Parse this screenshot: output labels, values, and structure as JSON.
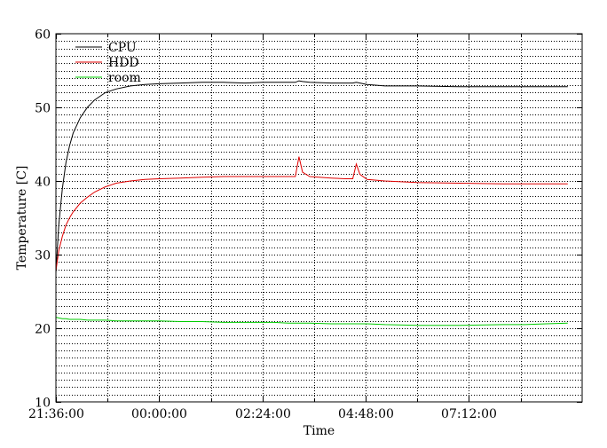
{
  "chart_data": {
    "type": "line",
    "title": "",
    "xlabel": "Time",
    "ylabel": "Temperature [C]",
    "ylim": [
      10,
      60
    ],
    "yticks": [
      10,
      20,
      30,
      40,
      50,
      60
    ],
    "xlim": [
      "21:36:00",
      "09:50:00"
    ],
    "xticks": [
      "21:36:00",
      "00:00:00",
      "02:24:00",
      "04:48:00",
      "07:12:00"
    ],
    "x_minor_ticks": [
      "22:48:00",
      "01:12:00",
      "03:36:00",
      "06:00:00",
      "08:24:00"
    ],
    "grid": {
      "horizontal": true,
      "vertical": true,
      "horizontal_every": 1
    },
    "legend": {
      "position": "top-left"
    },
    "x": [
      "21:36:00",
      "21:40:00",
      "21:45:00",
      "21:50:00",
      "21:55:00",
      "22:00:00",
      "22:10:00",
      "22:20:00",
      "22:30:00",
      "22:45:00",
      "23:00:00",
      "23:20:00",
      "23:40:00",
      "00:00:00",
      "00:30:00",
      "01:00:00",
      "01:30:00",
      "02:00:00",
      "02:24:00",
      "02:40:00",
      "03:00:00",
      "03:10:00",
      "03:15:00",
      "03:20:00",
      "03:30:00",
      "04:00:00",
      "04:20:00",
      "04:30:00",
      "04:35:00",
      "04:40:00",
      "04:50:00",
      "05:15:00",
      "06:00:00",
      "07:00:00",
      "08:00:00",
      "08:30:00",
      "09:00:00",
      "09:30:00"
    ],
    "series": [
      {
        "name": "CPU",
        "color": "#000000",
        "values": [
          27.5,
          34,
          39,
          42.5,
          44.8,
          46.5,
          48.6,
          50,
          51,
          52,
          52.5,
          52.9,
          53.1,
          53.2,
          53.3,
          53.4,
          53.4,
          53.3,
          53.4,
          53.4,
          53.4,
          53.4,
          53.6,
          53.5,
          53.4,
          53.3,
          53.3,
          53.3,
          53.4,
          53.3,
          53.1,
          52.9,
          52.9,
          52.8,
          52.8,
          52.8,
          52.8,
          52.8
        ]
      },
      {
        "name": "HDD",
        "color": "#e00000",
        "values": [
          27.8,
          30.5,
          32.5,
          34,
          35,
          35.8,
          37,
          37.8,
          38.5,
          39.2,
          39.7,
          40,
          40.2,
          40.3,
          40.4,
          40.5,
          40.6,
          40.6,
          40.6,
          40.6,
          40.6,
          40.6,
          43.3,
          41.2,
          40.6,
          40.4,
          40.3,
          40.3,
          42.3,
          40.9,
          40.2,
          40,
          39.8,
          39.7,
          39.6,
          39.6,
          39.6,
          39.6
        ]
      },
      {
        "name": "room",
        "color": "#00cc00",
        "values": [
          21.5,
          21.4,
          21.3,
          21.3,
          21.2,
          21.2,
          21.2,
          21.1,
          21.1,
          21.1,
          21,
          21,
          21,
          21,
          20.9,
          20.9,
          20.8,
          20.8,
          20.8,
          20.8,
          20.7,
          20.7,
          20.7,
          20.7,
          20.7,
          20.6,
          20.6,
          20.6,
          20.6,
          20.6,
          20.6,
          20.5,
          20.4,
          20.4,
          20.5,
          20.5,
          20.6,
          20.7
        ]
      }
    ]
  }
}
